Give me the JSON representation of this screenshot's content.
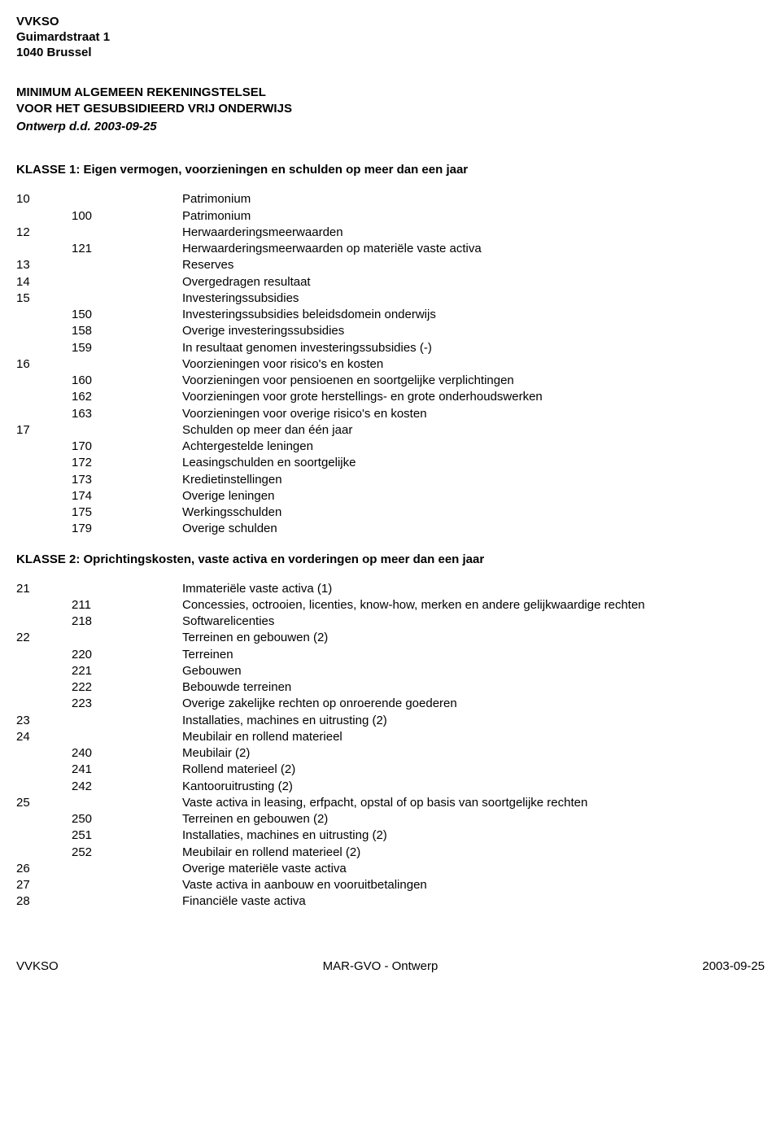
{
  "org": {
    "name": "VVKSO",
    "address1": "Guimardstraat 1",
    "address2": "1040 Brussel"
  },
  "title": {
    "line1": "MINIMUM ALGEMEEN REKENINGSTELSEL",
    "line2": "VOOR HET GESUBSIDIEERD VRIJ ONDERWIJS",
    "dateLine": "Ontwerp d.d. 2003-09-25"
  },
  "klasse1": {
    "heading": "KLASSE 1: Eigen vermogen, voorzieningen en schulden op meer dan een jaar",
    "rows": [
      {
        "a": "10",
        "b": "",
        "label": "Patrimonium"
      },
      {
        "a": "",
        "b": "100",
        "label": "Patrimonium"
      },
      {
        "a": "12",
        "b": "",
        "label": "Herwaarderingsmeerwaarden"
      },
      {
        "a": "",
        "b": "121",
        "label": "Herwaarderingsmeerwaarden op materiële vaste activa"
      },
      {
        "a": "13",
        "b": "",
        "label": "Reserves"
      },
      {
        "a": "14",
        "b": "",
        "label": "Overgedragen resultaat"
      },
      {
        "a": "15",
        "b": "",
        "label": "Investeringssubsidies"
      },
      {
        "a": "",
        "b": "150",
        "label": "Investeringssubsidies beleidsdomein onderwijs"
      },
      {
        "a": "",
        "b": "158",
        "label": "Overige investeringssubsidies"
      },
      {
        "a": "",
        "b": "159",
        "label": "In resultaat genomen investeringssubsidies (-)"
      },
      {
        "a": "16",
        "b": "",
        "label": "Voorzieningen voor risico's en kosten"
      },
      {
        "a": "",
        "b": "160",
        "label": "Voorzieningen voor pensioenen en soortgelijke verplichtingen"
      },
      {
        "a": "",
        "b": "162",
        "label": "Voorzieningen voor grote herstellings- en grote onderhoudswerken"
      },
      {
        "a": "",
        "b": "163",
        "label": "Voorzieningen voor overige risico's en kosten"
      },
      {
        "a": "17",
        "b": "",
        "label": "Schulden op meer dan één jaar"
      },
      {
        "a": "",
        "b": "170",
        "label": "Achtergestelde leningen"
      },
      {
        "a": "",
        "b": "172",
        "label": "Leasingschulden en soortgelijke"
      },
      {
        "a": "",
        "b": "173",
        "label": "Kredietinstellingen"
      },
      {
        "a": "",
        "b": "174",
        "label": "Overige leningen"
      },
      {
        "a": "",
        "b": "175",
        "label": "Werkingsschulden"
      },
      {
        "a": "",
        "b": "179",
        "label": "Overige schulden"
      }
    ]
  },
  "klasse2": {
    "heading": "KLASSE 2: Oprichtingskosten, vaste activa en vorderingen op meer dan een jaar",
    "rows": [
      {
        "a": "21",
        "b": "",
        "label": "Immateriële vaste activa (1)"
      },
      {
        "a": "",
        "b": "211",
        "label": "Concessies, octrooien, licenties, know-how, merken en andere gelijkwaardige rechten"
      },
      {
        "a": "",
        "b": "218",
        "label": "Softwarelicenties"
      },
      {
        "a": "22",
        "b": "",
        "label": "Terreinen en gebouwen (2)"
      },
      {
        "a": "",
        "b": "220",
        "label": "Terreinen"
      },
      {
        "a": "",
        "b": "221",
        "label": "Gebouwen"
      },
      {
        "a": "",
        "b": "222",
        "label": "Bebouwde terreinen"
      },
      {
        "a": "",
        "b": "223",
        "label": "Overige zakelijke rechten op onroerende goederen"
      },
      {
        "a": "23",
        "b": "",
        "label": "Installaties, machines en uitrusting (2)"
      },
      {
        "a": "24",
        "b": "",
        "label": "Meubilair en rollend materieel"
      },
      {
        "a": "",
        "b": "240",
        "label": "Meubilair (2)"
      },
      {
        "a": "",
        "b": "241",
        "label": "Rollend materieel (2)"
      },
      {
        "a": "",
        "b": "242",
        "label": "Kantooruitrusting (2)"
      },
      {
        "a": "25",
        "b": "",
        "label": "Vaste activa in leasing, erfpacht, opstal of op basis van soortgelijke rechten"
      },
      {
        "a": "",
        "b": "250",
        "label": "Terreinen en gebouwen (2)"
      },
      {
        "a": "",
        "b": "251",
        "label": "Installaties, machines en uitrusting (2)"
      },
      {
        "a": "",
        "b": "252",
        "label": "Meubilair en rollend materieel (2)"
      },
      {
        "a": "26",
        "b": "",
        "label": "Overige materiële vaste activa"
      },
      {
        "a": "27",
        "b": "",
        "label": "Vaste activa in aanbouw en vooruitbetalingen"
      },
      {
        "a": "28",
        "b": "",
        "label": "Financiële vaste activa"
      }
    ]
  },
  "footer": {
    "left": "VVKSO",
    "center": "MAR-GVO - Ontwerp",
    "right": "2003-09-25"
  }
}
